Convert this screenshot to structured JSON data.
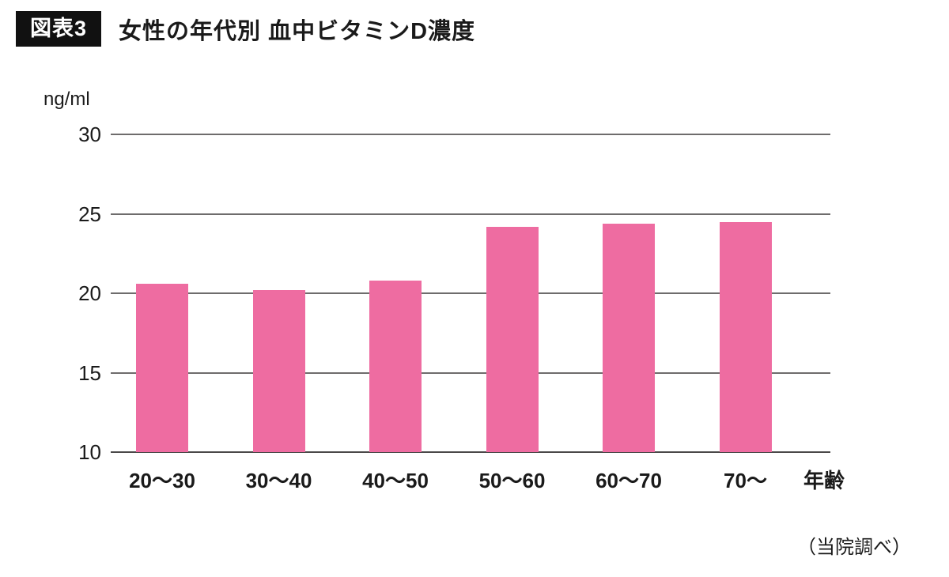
{
  "header": {
    "badge": "図表3",
    "title": "女性の年代別 血中ビタミンD濃度"
  },
  "chart_data": {
    "type": "bar",
    "title": "女性の年代別 血中ビタミンD濃度",
    "unit_label": "ng/ml",
    "xlabel": "年齢",
    "ylabel": "ng/ml",
    "categories": [
      "20〜30",
      "30〜40",
      "40〜50",
      "50〜60",
      "60〜70",
      "70〜"
    ],
    "values": [
      20.6,
      20.2,
      20.8,
      24.2,
      24.4,
      24.5
    ],
    "y_ticks": [
      10,
      15,
      20,
      25,
      30
    ],
    "ylim": [
      10,
      30
    ],
    "grid": true,
    "legend": false,
    "bar_color": "#ee6ca1"
  },
  "footer": {
    "source": "（当院調べ）"
  }
}
